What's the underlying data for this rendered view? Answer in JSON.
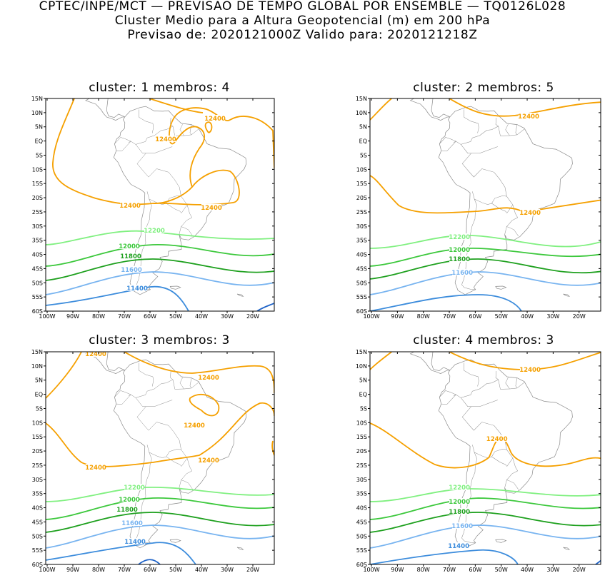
{
  "header": {
    "line1": "CPTEC/INPE/MCT — PREVISAO DE TEMPO GLOBAL POR ENSEMBLE — TQ0126L028",
    "line2": "Cluster Medio para a Altura Geopotencial (m) em 200 hPa",
    "line3": "Previsao de: 2020121000Z    Valido para: 2020121218Z"
  },
  "axes": {
    "lat_labels": [
      "15N",
      "10N",
      "5N",
      "EQ",
      "5S",
      "10S",
      "15S",
      "20S",
      "25S",
      "30S",
      "35S",
      "40S",
      "45S",
      "50S",
      "55S",
      "60S"
    ],
    "lon_labels": [
      "100W",
      "90W",
      "80W",
      "70W",
      "60W",
      "50W",
      "40W",
      "30W",
      "20W"
    ]
  },
  "colors": {
    "c12400": "#f5a000",
    "c12200": "#80f080",
    "c12000": "#3cc83c",
    "c11800": "#1ea01e",
    "c11600": "#78b4f0",
    "c11400": "#3c8cdc",
    "c11200": "#2064c8",
    "coast": "#8c8c8c"
  },
  "panels": [
    {
      "title": "cluster: 1   membros: 4",
      "contours": [
        {
          "level": "12400",
          "color_key": "c12400",
          "labels": [
            "12400",
            "12400",
            "12400",
            "12400"
          ]
        },
        {
          "level": "12200",
          "color_key": "c12200",
          "labels": [
            "12200"
          ]
        },
        {
          "level": "12000",
          "color_key": "c12000",
          "labels": [
            "12000"
          ]
        },
        {
          "level": "11800",
          "color_key": "c11800",
          "labels": [
            "11800"
          ]
        },
        {
          "level": "11600",
          "color_key": "c11600",
          "labels": [
            "11600"
          ]
        },
        {
          "level": "11400",
          "color_key": "c11400",
          "labels": [
            "11400"
          ]
        }
      ]
    },
    {
      "title": "cluster: 2   membros: 5",
      "contours": [
        {
          "level": "12400",
          "color_key": "c12400",
          "labels": [
            "12400",
            "12400"
          ]
        },
        {
          "level": "12200",
          "color_key": "c12200",
          "labels": [
            "12200"
          ]
        },
        {
          "level": "12000",
          "color_key": "c12000",
          "labels": [
            "12000"
          ]
        },
        {
          "level": "11800",
          "color_key": "c11800",
          "labels": [
            "11800"
          ]
        },
        {
          "level": "11600",
          "color_key": "c11600",
          "labels": [
            "11600"
          ]
        }
      ]
    },
    {
      "title": "cluster: 3   membros: 3",
      "contours": [
        {
          "level": "12400",
          "color_key": "c12400",
          "labels": [
            "12400",
            "12400",
            "12400",
            "12400",
            "12400"
          ]
        },
        {
          "level": "12200",
          "color_key": "c12200",
          "labels": [
            "12200"
          ]
        },
        {
          "level": "12000",
          "color_key": "c12000",
          "labels": [
            "12000"
          ]
        },
        {
          "level": "11800",
          "color_key": "c11800",
          "labels": [
            "11800"
          ]
        },
        {
          "level": "11600",
          "color_key": "c11600",
          "labels": [
            "11600"
          ]
        },
        {
          "level": "11400",
          "color_key": "c11400",
          "labels": [
            "11400"
          ]
        }
      ]
    },
    {
      "title": "cluster: 4   membros: 3",
      "contours": [
        {
          "level": "12400",
          "color_key": "c12400",
          "labels": [
            "12400",
            "12400"
          ]
        },
        {
          "level": "12200",
          "color_key": "c12200",
          "labels": [
            "12200"
          ]
        },
        {
          "level": "12000",
          "color_key": "c12000",
          "labels": [
            "12000"
          ]
        },
        {
          "level": "11800",
          "color_key": "c11800",
          "labels": [
            "11800"
          ]
        },
        {
          "level": "11600",
          "color_key": "c11600",
          "labels": [
            "11600"
          ]
        },
        {
          "level": "11400",
          "color_key": "c11400",
          "labels": [
            "11400"
          ]
        }
      ]
    }
  ]
}
